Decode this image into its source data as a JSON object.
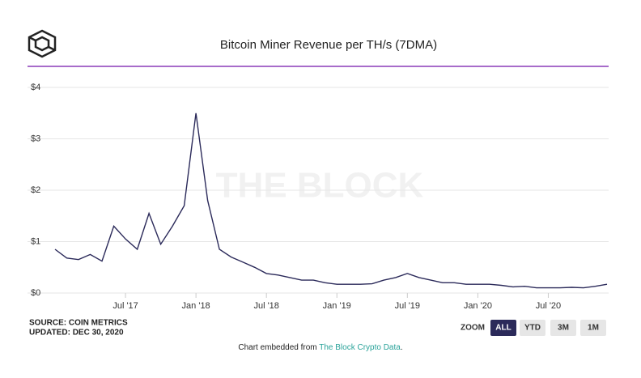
{
  "chart_data": {
    "type": "line",
    "title": "Bitcoin Miner Revenue per TH/s (7DMA)",
    "x": [
      "2017-01",
      "2017-02",
      "2017-03",
      "2017-04",
      "2017-05",
      "2017-06",
      "2017-07",
      "2017-08",
      "2017-09",
      "2017-10",
      "2017-11",
      "2017-12",
      "2018-01",
      "2018-02",
      "2018-03",
      "2018-04",
      "2018-05",
      "2018-06",
      "2018-07",
      "2018-08",
      "2018-09",
      "2018-10",
      "2018-11",
      "2018-12",
      "2019-01",
      "2019-02",
      "2019-03",
      "2019-04",
      "2019-05",
      "2019-06",
      "2019-07",
      "2019-08",
      "2019-09",
      "2019-10",
      "2019-11",
      "2019-12",
      "2020-01",
      "2020-02",
      "2020-03",
      "2020-04",
      "2020-05",
      "2020-06",
      "2020-07",
      "2020-08",
      "2020-09",
      "2020-10",
      "2020-11",
      "2020-12"
    ],
    "series": [
      {
        "name": "Miner Revenue per TH/s",
        "color": "#2b2a5a",
        "values": [
          0.85,
          0.68,
          0.65,
          0.75,
          0.62,
          1.3,
          1.05,
          0.85,
          1.55,
          0.95,
          1.3,
          1.7,
          3.5,
          1.8,
          0.85,
          0.7,
          0.6,
          0.5,
          0.38,
          0.35,
          0.3,
          0.25,
          0.25,
          0.2,
          0.17,
          0.17,
          0.17,
          0.18,
          0.25,
          0.3,
          0.38,
          0.3,
          0.25,
          0.2,
          0.2,
          0.17,
          0.17,
          0.17,
          0.15,
          0.12,
          0.13,
          0.1,
          0.1,
          0.1,
          0.11,
          0.1,
          0.13,
          0.17
        ]
      }
    ],
    "xlim": [
      "2017-01",
      "2020-12"
    ],
    "xticks": [
      {
        "value": "2017-07",
        "label": "Jul '17"
      },
      {
        "value": "2018-01",
        "label": "Jan '18"
      },
      {
        "value": "2018-07",
        "label": "Jul '18"
      },
      {
        "value": "2019-01",
        "label": "Jan '19"
      },
      {
        "value": "2019-07",
        "label": "Jul '19"
      },
      {
        "value": "2020-01",
        "label": "Jan '20"
      },
      {
        "value": "2020-07",
        "label": "Jul '20"
      }
    ],
    "ylim": [
      0,
      4
    ],
    "yticks": [
      {
        "value": 0,
        "label": "$0"
      },
      {
        "value": 1,
        "label": "$1"
      },
      {
        "value": 2,
        "label": "$2"
      },
      {
        "value": 3,
        "label": "$3"
      },
      {
        "value": 4,
        "label": "$4"
      }
    ],
    "grid": true
  },
  "watermark": "THE BLOCK",
  "source": "SOURCE: COIN METRICS",
  "updated": "UPDATED: DEC 30, 2020",
  "zoom": {
    "label": "ZOOM",
    "buttons": [
      "ALL",
      "YTD",
      "3M",
      "1M"
    ],
    "active": 0
  },
  "footer": {
    "text": "Chart embedded from ",
    "link": "The Block Crypto Data",
    "end": "."
  }
}
